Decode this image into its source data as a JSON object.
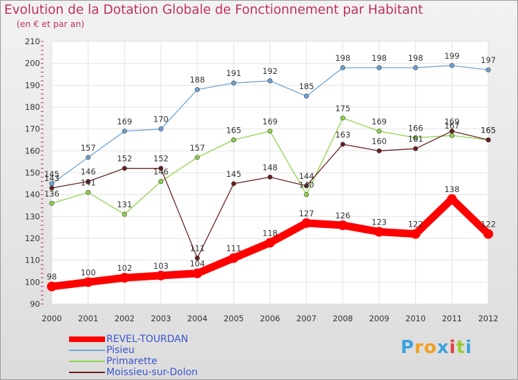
{
  "title": "Evolution de la Dotation Globale de Fonctionnement par Habitant",
  "subtitle": "(en € et par an)",
  "logo": [
    "P",
    "r",
    "o",
    "x",
    "i",
    "t",
    "i"
  ],
  "logo_colors": [
    "#3aa3de",
    "#f0a020",
    "#f0a020",
    "#3aa3de",
    "#e04040",
    "#9acd32",
    "#3aa3de"
  ],
  "chart_data": {
    "type": "line",
    "title": "Evolution de la Dotation Globale de Fonctionnement par Habitant",
    "ylabel": "(en € et par an)",
    "xlabel": "",
    "ylim": [
      90,
      210
    ],
    "yticks": [
      90,
      100,
      110,
      120,
      130,
      140,
      150,
      160,
      170,
      180,
      190,
      200,
      210
    ],
    "categories": [
      "2000",
      "2001",
      "2002",
      "2003",
      "2004",
      "2005",
      "2006",
      "2007",
      "2008",
      "2009",
      "2010",
      "2011",
      "2012"
    ],
    "grid": true,
    "legend_position": "bottom-left",
    "series": [
      {
        "name": "REVEL-TOURDAN",
        "color": "#ff0000",
        "values": [
          98,
          100,
          102,
          103,
          104,
          111,
          118,
          127,
          126,
          123,
          122,
          138,
          122
        ]
      },
      {
        "name": "Pisieu",
        "color": "#6fa3d6",
        "values": [
          145,
          157,
          169,
          170,
          188,
          191,
          192,
          185,
          198,
          198,
          198,
          199,
          197
        ]
      },
      {
        "name": "Primarette",
        "color": "#8ed24a",
        "values": [
          136,
          141,
          131,
          146,
          157,
          165,
          169,
          140,
          175,
          169,
          166,
          167,
          165
        ]
      },
      {
        "name": "Moissieu-sur-Dolon",
        "color": "#6a2020",
        "values": [
          143,
          146,
          152,
          152,
          111,
          145,
          148,
          144,
          163,
          160,
          161,
          169,
          165
        ]
      }
    ]
  }
}
